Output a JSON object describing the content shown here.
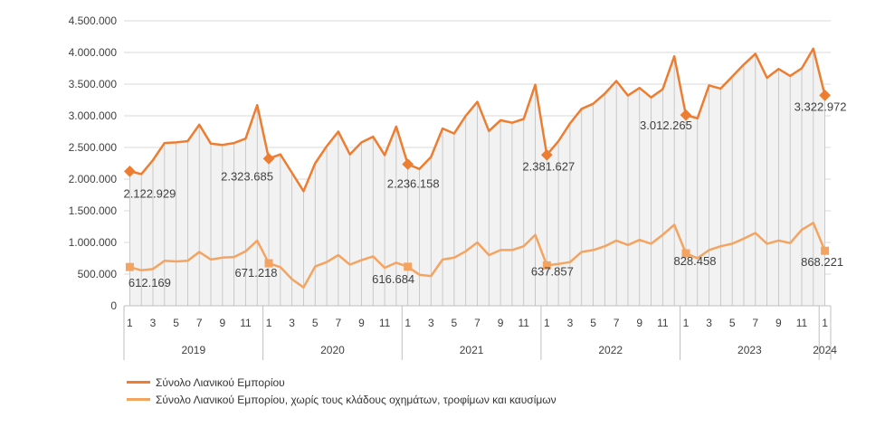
{
  "colors": {
    "series1": "#ED7D31",
    "series2": "#F4A460",
    "grid": "#D9D9D9",
    "text": "#404040"
  },
  "chart_data": {
    "type": "line",
    "yticks": [
      "0",
      "500.000",
      "1.000.000",
      "1.500.000",
      "2.000.000",
      "2.500.000",
      "3.000.000",
      "3.500.000",
      "4.000.000",
      "4.500.000"
    ],
    "ylim": [
      0,
      4500000
    ],
    "month_ticks": [
      "1",
      "3",
      "5",
      "7",
      "9",
      "11"
    ],
    "years": [
      "2019",
      "2020",
      "2021",
      "2022",
      "2023",
      "2024"
    ],
    "legend_placement": "bottom",
    "grid": true,
    "series": [
      {
        "name": "Σύνολο Λιανικού Εμπορίου",
        "values": [
          2122929,
          2080000,
          2300000,
          2570000,
          2580000,
          2600000,
          2860000,
          2560000,
          2540000,
          2570000,
          2640000,
          3170000,
          2323685,
          2390000,
          2100000,
          1810000,
          2250000,
          2520000,
          2750000,
          2390000,
          2580000,
          2670000,
          2380000,
          2830000,
          2236158,
          2160000,
          2350000,
          2800000,
          2720000,
          3000000,
          3220000,
          2760000,
          2930000,
          2890000,
          2950000,
          3490000,
          2381627,
          2600000,
          2880000,
          3110000,
          3190000,
          3350000,
          3550000,
          3320000,
          3440000,
          3290000,
          3420000,
          3940000,
          3012265,
          2960000,
          3480000,
          3430000,
          3620000,
          3810000,
          3980000,
          3600000,
          3740000,
          3630000,
          3750000,
          4060000,
          3322972
        ],
        "labels": [
          "2.122.929",
          "2.323.685",
          "2.236.158",
          "2.381.627",
          "3.012.265",
          "3.322.972"
        ]
      },
      {
        "name": "Σύνολο Λιανικού Εμπορίου, χωρίς τους κλάδους οχημάτων, τροφίμων και καυσίμων",
        "values": [
          612169,
          560000,
          580000,
          710000,
          700000,
          710000,
          850000,
          730000,
          760000,
          770000,
          860000,
          1030000,
          671218,
          610000,
          420000,
          290000,
          620000,
          690000,
          800000,
          650000,
          720000,
          780000,
          600000,
          680000,
          616684,
          490000,
          470000,
          730000,
          760000,
          860000,
          1000000,
          800000,
          880000,
          880000,
          940000,
          1120000,
          637857,
          660000,
          690000,
          850000,
          880000,
          940000,
          1030000,
          960000,
          1040000,
          980000,
          1120000,
          1280000,
          828458,
          750000,
          880000,
          940000,
          980000,
          1060000,
          1150000,
          980000,
          1030000,
          990000,
          1200000,
          1310000,
          868221
        ],
        "labels": [
          "612.169",
          "671.218",
          "616.684",
          "637.857",
          "828.458",
          "868.221"
        ]
      }
    ]
  }
}
